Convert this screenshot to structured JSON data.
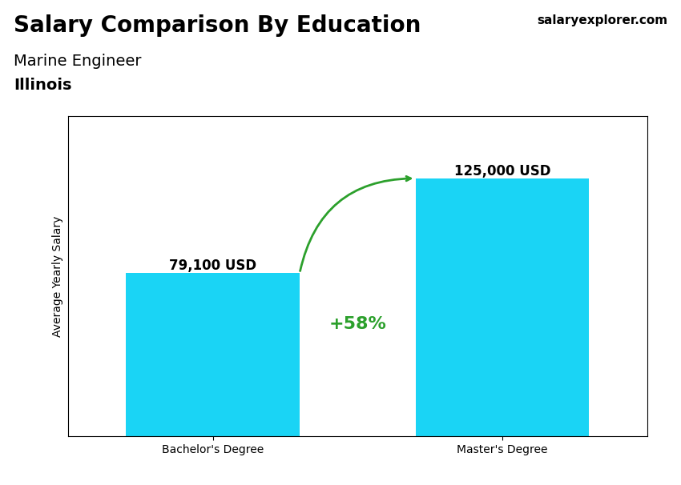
{
  "chart_data": {
    "type": "bar",
    "title": "Salary Comparison By Education",
    "subtitle": [
      "Marine Engineer",
      "Illinois"
    ],
    "categories": [
      "Bachelor's Degree",
      "Master's Degree"
    ],
    "values": [
      79100,
      125000
    ],
    "value_labels": [
      "79,100 USD",
      "125,000 USD"
    ],
    "data_labels": true,
    "color": "#1ad4f5",
    "y_label": "Average Yearly Salary",
    "ylim": [
      0,
      155000
    ],
    "tick_labels": "x",
    "grid": false,
    "annotations": [
      "+58%",
      "salaryexplorer.com"
    ]
  }
}
